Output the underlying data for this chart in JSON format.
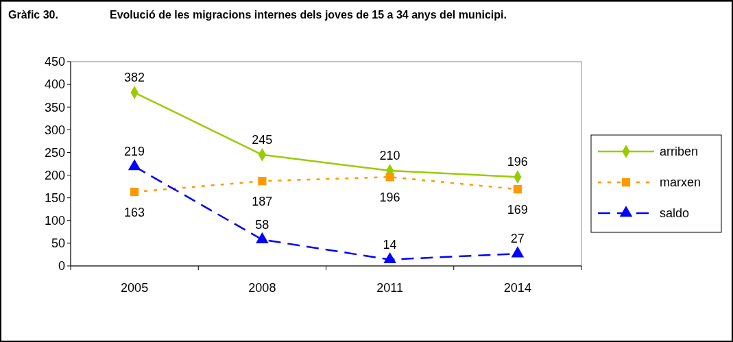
{
  "chart_data": {
    "type": "line",
    "title": "Evolució de les migracions internes dels joves de 15 a 34 anys del municipi.",
    "annotations": [
      "Gràfic 30."
    ],
    "categories": [
      "2005",
      "2008",
      "2011",
      "2014"
    ],
    "series": [
      {
        "name": "arriben",
        "color": "#99cc00",
        "values": [
          382,
          245,
          210,
          196
        ],
        "marker": "diamond",
        "line_style": "solid"
      },
      {
        "name": "marxen",
        "color": "#ff9900",
        "values": [
          163,
          187,
          196,
          169
        ],
        "marker": "square",
        "line_style": "dotted"
      },
      {
        "name": "saldo",
        "color": "#0000ff",
        "values": [
          219,
          58,
          14,
          27
        ],
        "marker": "triangle",
        "line_style": "dashed"
      }
    ],
    "ylim": [
      0,
      450
    ],
    "yticks": [
      0,
      50,
      100,
      150,
      200,
      250,
      300,
      350,
      400,
      450
    ],
    "grid": false,
    "legend": "right",
    "data_labels": true
  }
}
